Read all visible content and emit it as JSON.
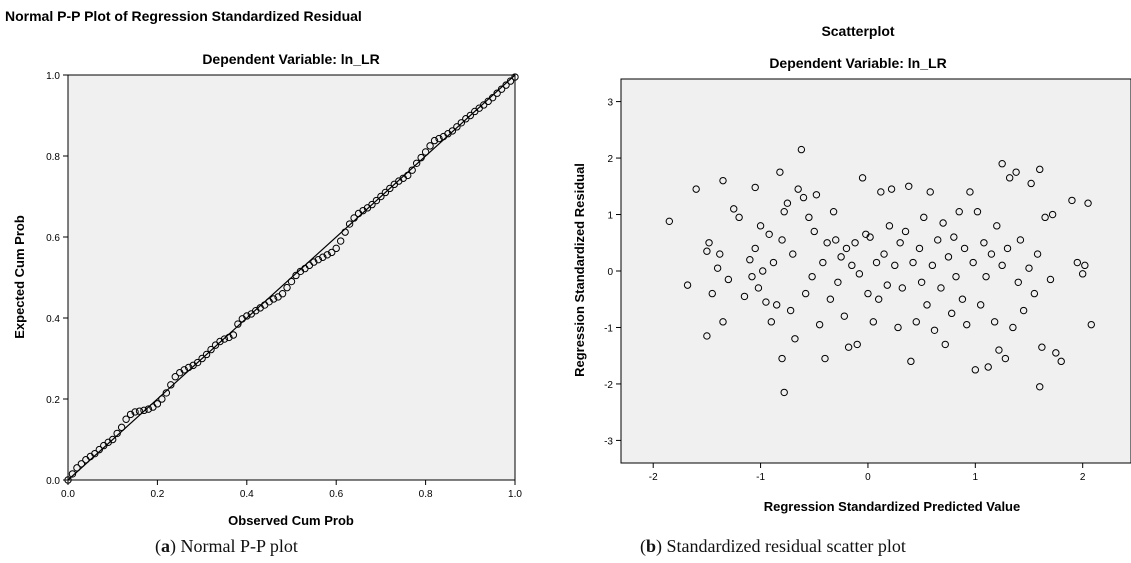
{
  "captions": {
    "a_letter": "a",
    "a_text": " Normal P-P plot",
    "b_letter": "b",
    "b_text": " Standardized residual scatter plot"
  },
  "colors": {
    "plot_bg": "#f0f0f0",
    "marker": "#000000",
    "frame": "#000000"
  },
  "chart_data": [
    {
      "type": "line",
      "title": "Normal P-P Plot of Regression Standardized Residual",
      "subtitle": "Dependent Variable: ln_LR",
      "xlabel": "Observed Cum Prob",
      "ylabel": "Expected Cum Prob",
      "xlim": [
        0,
        1
      ],
      "ylim": [
        0,
        1
      ],
      "xticks": [
        "0.0",
        "0.2",
        "0.4",
        "0.6",
        "0.8",
        "1.0"
      ],
      "yticks": [
        "0.0",
        "0.2",
        "0.4",
        "0.6",
        "0.8",
        "1.0"
      ],
      "reference_line": true,
      "grid": false,
      "series": [
        {
          "marker": "circle-open",
          "points": [
            [
              0,
              0
            ],
            [
              0.01,
              0.015
            ],
            [
              0.02,
              0.03
            ],
            [
              0.03,
              0.04
            ],
            [
              0.04,
              0.05
            ],
            [
              0.05,
              0.058
            ],
            [
              0.06,
              0.065
            ],
            [
              0.07,
              0.075
            ],
            [
              0.08,
              0.085
            ],
            [
              0.09,
              0.093
            ],
            [
              0.1,
              0.1
            ],
            [
              0.11,
              0.115
            ],
            [
              0.12,
              0.13
            ],
            [
              0.13,
              0.15
            ],
            [
              0.14,
              0.162
            ],
            [
              0.15,
              0.168
            ],
            [
              0.16,
              0.17
            ],
            [
              0.17,
              0.172
            ],
            [
              0.18,
              0.175
            ],
            [
              0.19,
              0.18
            ],
            [
              0.2,
              0.188
            ],
            [
              0.21,
              0.2
            ],
            [
              0.22,
              0.215
            ],
            [
              0.23,
              0.235
            ],
            [
              0.24,
              0.255
            ],
            [
              0.25,
              0.265
            ],
            [
              0.26,
              0.272
            ],
            [
              0.27,
              0.278
            ],
            [
              0.28,
              0.283
            ],
            [
              0.29,
              0.29
            ],
            [
              0.3,
              0.3
            ],
            [
              0.31,
              0.31
            ],
            [
              0.32,
              0.322
            ],
            [
              0.33,
              0.333
            ],
            [
              0.34,
              0.342
            ],
            [
              0.35,
              0.348
            ],
            [
              0.36,
              0.352
            ],
            [
              0.37,
              0.358
            ],
            [
              0.38,
              0.385
            ],
            [
              0.39,
              0.398
            ],
            [
              0.4,
              0.405
            ],
            [
              0.41,
              0.41
            ],
            [
              0.42,
              0.418
            ],
            [
              0.43,
              0.425
            ],
            [
              0.44,
              0.432
            ],
            [
              0.45,
              0.44
            ],
            [
              0.46,
              0.447
            ],
            [
              0.47,
              0.452
            ],
            [
              0.48,
              0.46
            ],
            [
              0.49,
              0.475
            ],
            [
              0.5,
              0.49
            ],
            [
              0.51,
              0.505
            ],
            [
              0.52,
              0.515
            ],
            [
              0.53,
              0.522
            ],
            [
              0.54,
              0.53
            ],
            [
              0.55,
              0.538
            ],
            [
              0.56,
              0.544
            ],
            [
              0.57,
              0.55
            ],
            [
              0.58,
              0.556
            ],
            [
              0.59,
              0.562
            ],
            [
              0.6,
              0.572
            ],
            [
              0.61,
              0.59
            ],
            [
              0.62,
              0.612
            ],
            [
              0.63,
              0.632
            ],
            [
              0.64,
              0.647
            ],
            [
              0.65,
              0.658
            ],
            [
              0.66,
              0.665
            ],
            [
              0.67,
              0.672
            ],
            [
              0.68,
              0.68
            ],
            [
              0.69,
              0.69
            ],
            [
              0.7,
              0.7
            ],
            [
              0.71,
              0.71
            ],
            [
              0.72,
              0.72
            ],
            [
              0.73,
              0.73
            ],
            [
              0.74,
              0.738
            ],
            [
              0.75,
              0.745
            ],
            [
              0.76,
              0.752
            ],
            [
              0.77,
              0.765
            ],
            [
              0.78,
              0.782
            ],
            [
              0.79,
              0.796
            ],
            [
              0.8,
              0.81
            ],
            [
              0.81,
              0.825
            ],
            [
              0.82,
              0.838
            ],
            [
              0.83,
              0.843
            ],
            [
              0.84,
              0.848
            ],
            [
              0.85,
              0.855
            ],
            [
              0.86,
              0.862
            ],
            [
              0.87,
              0.872
            ],
            [
              0.88,
              0.882
            ],
            [
              0.89,
              0.892
            ],
            [
              0.9,
              0.9
            ],
            [
              0.91,
              0.91
            ],
            [
              0.92,
              0.918
            ],
            [
              0.93,
              0.926
            ],
            [
              0.94,
              0.935
            ],
            [
              0.95,
              0.944
            ],
            [
              0.96,
              0.955
            ],
            [
              0.97,
              0.965
            ],
            [
              0.98,
              0.975
            ],
            [
              0.99,
              0.985
            ],
            [
              1,
              0.995
            ]
          ]
        }
      ]
    },
    {
      "type": "scatter",
      "title": "Scatterplot",
      "subtitle": "Dependent Variable: ln_LR",
      "xlabel": "Regression Standardized Predicted Value",
      "ylabel": "Regression Standardized Residual",
      "xlim": [
        -2.3,
        2.45
      ],
      "ylim": [
        -3.4,
        3.4
      ],
      "xticks": [
        "-2",
        "-1",
        "0",
        "1",
        "2"
      ],
      "yticks": [
        "3",
        "2",
        "1",
        "0",
        "-1",
        "-2",
        "-3"
      ],
      "grid": false,
      "series": [
        {
          "marker": "circle-open",
          "points": [
            [
              -1.85,
              0.88
            ],
            [
              -1.68,
              -0.25
            ],
            [
              -1.6,
              1.45
            ],
            [
              -1.5,
              -1.15
            ],
            [
              -1.5,
              0.35
            ],
            [
              -1.48,
              0.5
            ],
            [
              -1.45,
              -0.4
            ],
            [
              -1.4,
              0.05
            ],
            [
              -1.38,
              0.3
            ],
            [
              -1.35,
              1.6
            ],
            [
              -1.35,
              -0.9
            ],
            [
              -1.3,
              -0.15
            ],
            [
              -1.25,
              1.1
            ],
            [
              -1.2,
              0.95
            ],
            [
              -1.15,
              -0.45
            ],
            [
              -1.1,
              0.2
            ],
            [
              -1.08,
              -0.1
            ],
            [
              -1.05,
              1.48
            ],
            [
              -1.05,
              0.4
            ],
            [
              -1.02,
              -0.3
            ],
            [
              -1.0,
              0.8
            ],
            [
              -0.98,
              0.0
            ],
            [
              -0.95,
              -0.55
            ],
            [
              -0.92,
              0.65
            ],
            [
              -0.9,
              -0.9
            ],
            [
              -0.88,
              0.15
            ],
            [
              -0.85,
              -0.6
            ],
            [
              -0.82,
              1.75
            ],
            [
              -0.8,
              -1.55
            ],
            [
              -0.8,
              0.55
            ],
            [
              -0.78,
              -2.15
            ],
            [
              -0.78,
              1.05
            ],
            [
              -0.75,
              1.2
            ],
            [
              -0.72,
              -0.7
            ],
            [
              -0.7,
              0.3
            ],
            [
              -0.68,
              -1.2
            ],
            [
              -0.65,
              1.45
            ],
            [
              -0.62,
              2.15
            ],
            [
              -0.6,
              1.3
            ],
            [
              -0.58,
              -0.4
            ],
            [
              -0.55,
              0.95
            ],
            [
              -0.52,
              -0.1
            ],
            [
              -0.5,
              0.7
            ],
            [
              -0.48,
              1.35
            ],
            [
              -0.45,
              -0.95
            ],
            [
              -0.42,
              0.15
            ],
            [
              -0.4,
              -1.55
            ],
            [
              -0.38,
              0.5
            ],
            [
              -0.35,
              -0.5
            ],
            [
              -0.32,
              1.05
            ],
            [
              -0.3,
              0.55
            ],
            [
              -0.28,
              -0.2
            ],
            [
              -0.25,
              0.25
            ],
            [
              -0.22,
              -0.8
            ],
            [
              -0.2,
              0.4
            ],
            [
              -0.18,
              -1.35
            ],
            [
              -0.15,
              0.1
            ],
            [
              -0.12,
              0.5
            ],
            [
              -0.1,
              -1.3
            ],
            [
              -0.08,
              -0.05
            ],
            [
              -0.05,
              1.65
            ],
            [
              -0.02,
              0.65
            ],
            [
              0.0,
              -0.4
            ],
            [
              0.02,
              0.6
            ],
            [
              0.05,
              -0.9
            ],
            [
              0.08,
              0.15
            ],
            [
              0.1,
              -0.5
            ],
            [
              0.12,
              1.4
            ],
            [
              0.15,
              0.3
            ],
            [
              0.18,
              -0.25
            ],
            [
              0.2,
              0.8
            ],
            [
              0.22,
              1.45
            ],
            [
              0.25,
              0.1
            ],
            [
              0.28,
              -1.0
            ],
            [
              0.3,
              0.5
            ],
            [
              0.32,
              -0.3
            ],
            [
              0.35,
              0.7
            ],
            [
              0.38,
              1.5
            ],
            [
              0.4,
              -1.6
            ],
            [
              0.42,
              0.15
            ],
            [
              0.45,
              -0.9
            ],
            [
              0.48,
              0.4
            ],
            [
              0.5,
              -0.2
            ],
            [
              0.52,
              0.95
            ],
            [
              0.55,
              -0.6
            ],
            [
              0.58,
              1.4
            ],
            [
              0.6,
              0.1
            ],
            [
              0.62,
              -1.05
            ],
            [
              0.65,
              0.55
            ],
            [
              0.68,
              -0.3
            ],
            [
              0.7,
              0.85
            ],
            [
              0.72,
              -1.3
            ],
            [
              0.75,
              0.25
            ],
            [
              0.78,
              -0.75
            ],
            [
              0.8,
              0.6
            ],
            [
              0.82,
              -0.1
            ],
            [
              0.85,
              1.05
            ],
            [
              0.88,
              -0.5
            ],
            [
              0.9,
              0.4
            ],
            [
              0.92,
              -0.95
            ],
            [
              0.95,
              1.4
            ],
            [
              0.98,
              0.15
            ],
            [
              1.0,
              -1.75
            ],
            [
              1.02,
              1.05
            ],
            [
              1.05,
              -0.6
            ],
            [
              1.08,
              0.5
            ],
            [
              1.1,
              -0.1
            ],
            [
              1.12,
              -1.7
            ],
            [
              1.15,
              0.3
            ],
            [
              1.18,
              -0.9
            ],
            [
              1.2,
              0.8
            ],
            [
              1.22,
              -1.4
            ],
            [
              1.25,
              1.9
            ],
            [
              1.25,
              0.1
            ],
            [
              1.28,
              -1.55
            ],
            [
              1.3,
              0.4
            ],
            [
              1.32,
              1.65
            ],
            [
              1.35,
              -1.0
            ],
            [
              1.38,
              1.75
            ],
            [
              1.4,
              -0.2
            ],
            [
              1.42,
              0.55
            ],
            [
              1.45,
              -0.7
            ],
            [
              1.5,
              0.05
            ],
            [
              1.52,
              1.55
            ],
            [
              1.55,
              -0.4
            ],
            [
              1.58,
              0.3
            ],
            [
              1.6,
              -2.05
            ],
            [
              1.6,
              1.8
            ],
            [
              1.62,
              -1.35
            ],
            [
              1.65,
              0.95
            ],
            [
              1.7,
              -0.15
            ],
            [
              1.72,
              1.0
            ],
            [
              1.75,
              -1.45
            ],
            [
              1.8,
              -1.6
            ],
            [
              1.9,
              1.25
            ],
            [
              1.95,
              0.15
            ],
            [
              2.0,
              -0.05
            ],
            [
              2.02,
              0.1
            ],
            [
              2.05,
              1.2
            ],
            [
              2.08,
              -0.95
            ]
          ]
        }
      ]
    }
  ]
}
